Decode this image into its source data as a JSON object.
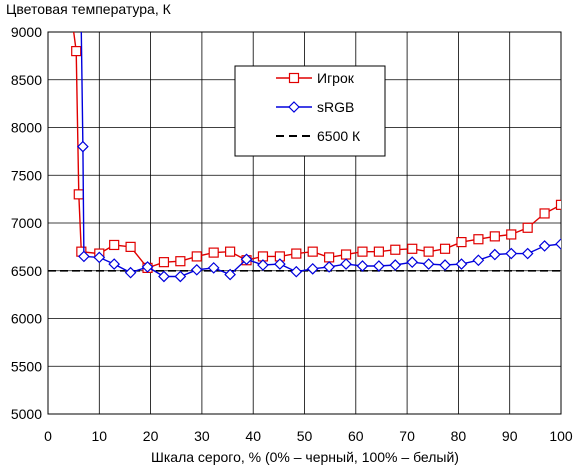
{
  "chart_data": {
    "type": "line",
    "title": "",
    "ylabel": "Цветовая температура, К",
    "xlabel": "Шкала серого, % (0% – черный, 100% – белый)",
    "xlim": [
      0,
      100
    ],
    "ylim": [
      5000,
      9000
    ],
    "x_ticks": [
      0,
      10,
      20,
      30,
      40,
      50,
      60,
      70,
      80,
      90,
      100
    ],
    "y_ticks": [
      5000,
      5500,
      6000,
      6500,
      7000,
      7500,
      8000,
      8500,
      9000
    ],
    "x_tick_labels": [
      "0",
      "10",
      "20",
      "30",
      "40",
      "50",
      "60",
      "70",
      "80",
      "90",
      "100"
    ],
    "y_tick_labels": [
      "5000",
      "5500",
      "6000",
      "6500",
      "7000",
      "7500",
      "8000",
      "8500",
      "9000"
    ],
    "grid": true,
    "legend_position": "top-right",
    "series": [
      {
        "name": "Игрок",
        "color": "#e00000",
        "marker": "square",
        "points": [
          [
            5.0,
            9000
          ],
          [
            5.5,
            8800
          ],
          [
            6.0,
            7300
          ],
          [
            6.5,
            6700
          ],
          [
            10,
            6680
          ],
          [
            12.9,
            6770
          ],
          [
            16.1,
            6750
          ],
          [
            19.4,
            6530
          ],
          [
            22.6,
            6590
          ],
          [
            25.8,
            6600
          ],
          [
            29.0,
            6650
          ],
          [
            32.3,
            6690
          ],
          [
            35.5,
            6700
          ],
          [
            38.7,
            6610
          ],
          [
            41.9,
            6650
          ],
          [
            45.2,
            6650
          ],
          [
            48.4,
            6680
          ],
          [
            51.6,
            6700
          ],
          [
            54.8,
            6640
          ],
          [
            58.1,
            6670
          ],
          [
            61.3,
            6700
          ],
          [
            64.5,
            6700
          ],
          [
            67.7,
            6720
          ],
          [
            71.0,
            6730
          ],
          [
            74.2,
            6700
          ],
          [
            77.4,
            6730
          ],
          [
            80.6,
            6800
          ],
          [
            83.9,
            6830
          ],
          [
            87.1,
            6860
          ],
          [
            90.3,
            6880
          ],
          [
            93.5,
            6950
          ],
          [
            96.8,
            7100
          ],
          [
            100,
            7190
          ]
        ]
      },
      {
        "name": "sRGB",
        "color": "#0000dd",
        "marker": "diamond",
        "points": [
          [
            6.5,
            9000
          ],
          [
            6.8,
            7800
          ],
          [
            7.0,
            6650
          ],
          [
            10,
            6640
          ],
          [
            12.9,
            6570
          ],
          [
            16.1,
            6480
          ],
          [
            19.4,
            6540
          ],
          [
            22.6,
            6440
          ],
          [
            25.8,
            6440
          ],
          [
            29.0,
            6510
          ],
          [
            32.3,
            6530
          ],
          [
            35.5,
            6460
          ],
          [
            38.7,
            6620
          ],
          [
            41.9,
            6560
          ],
          [
            45.2,
            6570
          ],
          [
            48.4,
            6490
          ],
          [
            51.6,
            6520
          ],
          [
            54.8,
            6540
          ],
          [
            58.1,
            6570
          ],
          [
            61.3,
            6550
          ],
          [
            64.5,
            6550
          ],
          [
            67.7,
            6560
          ],
          [
            71.0,
            6590
          ],
          [
            74.2,
            6570
          ],
          [
            77.4,
            6560
          ],
          [
            80.6,
            6570
          ],
          [
            83.9,
            6610
          ],
          [
            87.1,
            6670
          ],
          [
            90.3,
            6680
          ],
          [
            93.5,
            6680
          ],
          [
            96.8,
            6760
          ],
          [
            100,
            6780
          ]
        ]
      },
      {
        "name": "6500 К",
        "color": "#000000",
        "dashed": true,
        "points": [
          [
            0,
            6500
          ],
          [
            100,
            6500
          ]
        ]
      }
    ]
  }
}
